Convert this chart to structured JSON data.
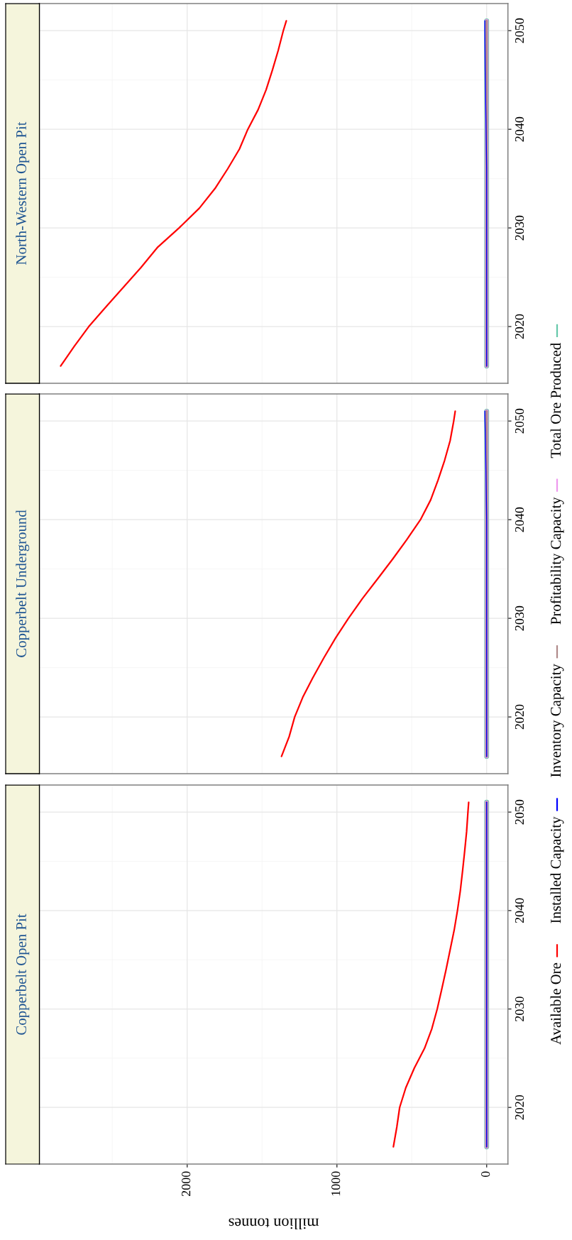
{
  "chart_data": [
    {
      "type": "line",
      "title": "Copperbelt Open Pit",
      "xlabel": "million tonnes",
      "xlim": [
        2987,
        -142
      ],
      "ylim": [
        2014.25,
        2052.75
      ],
      "xticks": [
        0,
        1000,
        2000
      ],
      "yticks": [
        2020,
        2030,
        2040,
        2050
      ],
      "grid": true,
      "legend": "right",
      "series": [
        {
          "name": "Available Ore",
          "color": "#ff0000",
          "x": [
            623,
            600,
            581,
            540,
            483,
            415,
            366,
            330,
            300,
            271,
            244,
            217,
            195,
            176,
            161,
            147,
            134,
            125,
            120
          ],
          "values": [
            2016,
            2018,
            2020,
            2022,
            2024,
            2026,
            2028,
            2030,
            2032,
            2034,
            2036,
            2038,
            2040,
            2042,
            2044,
            2046,
            2048,
            2050,
            2051
          ]
        },
        {
          "name": "Installed Capacity",
          "color": "#0000ff",
          "x": [
            0,
            0
          ],
          "values": [
            2016,
            2051
          ]
        },
        {
          "name": "Inventory Capacity",
          "color": "#b08a8a",
          "x": [
            0,
            0
          ],
          "values": [
            2016,
            2051
          ]
        },
        {
          "name": "Profitability Capacity",
          "color": "#ee99ee",
          "x": [
            0,
            0
          ],
          "values": [
            2016,
            2051
          ]
        },
        {
          "name": "Total Ore Produced",
          "color": "#66c8aa",
          "x": [
            0,
            0
          ],
          "values": [
            2016,
            2051
          ]
        }
      ]
    },
    {
      "type": "line",
      "title": "Copperbelt Underground",
      "xlim": [
        2987,
        -142
      ],
      "ylim": [
        2014.25,
        2052.75
      ],
      "xticks": [
        0,
        1000,
        2000
      ],
      "yticks": [
        2020,
        2030,
        2040,
        2050
      ],
      "grid": true,
      "tick_labels": "y",
      "series": [
        {
          "color": "#ff0000",
          "x": [
            1370,
            1319,
            1282,
            1228,
            1160,
            1087,
            1009,
            923,
            830,
            728,
            628,
            532,
            442,
            374,
            325,
            281,
            244,
            220,
            210
          ],
          "values": [
            2016,
            2018,
            2020,
            2022,
            2024,
            2026,
            2028,
            2030,
            2032,
            2034,
            2036,
            2038,
            2040,
            2042,
            2044,
            2046,
            2048,
            2050,
            2051
          ]
        },
        {
          "color": "#0000ff",
          "x": [
            0,
            0,
            2,
            4,
            6,
            8,
            11,
            12
          ],
          "values": [
            2016,
            2040,
            2042,
            2044,
            2046,
            2048,
            2050,
            2051
          ]
        },
        {
          "color": "#b08a8a",
          "x": [
            0,
            0
          ],
          "values": [
            2016,
            2051
          ]
        },
        {
          "color": "#ee99ee",
          "x": [
            0,
            0
          ],
          "values": [
            2016,
            2051
          ]
        },
        {
          "color": "#66c8aa",
          "x": [
            0,
            0
          ],
          "values": [
            2016,
            2051
          ]
        }
      ]
    },
    {
      "type": "line",
      "title": "North-Western Open Pit",
      "xlim": [
        2987,
        -142
      ],
      "ylim": [
        2014.25,
        2052.75
      ],
      "xticks": [
        0,
        1000,
        2000
      ],
      "yticks": [
        2020,
        2030,
        2040,
        2050
      ],
      "grid": true,
      "tick_labels": "y",
      "series": [
        {
          "color": "#ff0000",
          "x": [
            2845,
            2754,
            2657,
            2542,
            2425,
            2308,
            2200,
            2054,
            1919,
            1814,
            1729,
            1651,
            1595,
            1526,
            1473,
            1431,
            1392,
            1358,
            1338
          ],
          "values": [
            2016,
            2018,
            2020,
            2022,
            2024,
            2026,
            2028,
            2030,
            2032,
            2034,
            2036,
            2038,
            2040,
            2042,
            2044,
            2046,
            2048,
            2050,
            2051
          ]
        },
        {
          "color": "#0000ff",
          "x": [
            0,
            0,
            2,
            4,
            6,
            8,
            10,
            11,
            12,
            12
          ],
          "values": [
            2016,
            2036,
            2038,
            2040,
            2042,
            2044,
            2046,
            2048,
            2050,
            2051
          ]
        },
        {
          "color": "#b08a8a",
          "x": [
            0,
            0
          ],
          "values": [
            2016,
            2051
          ]
        },
        {
          "color": "#ee99ee",
          "x": [
            0,
            0
          ],
          "values": [
            2016,
            2051
          ]
        },
        {
          "color": "#66c8aa",
          "x": [
            0,
            0
          ],
          "values": [
            2016,
            2051
          ]
        }
      ]
    }
  ]
}
